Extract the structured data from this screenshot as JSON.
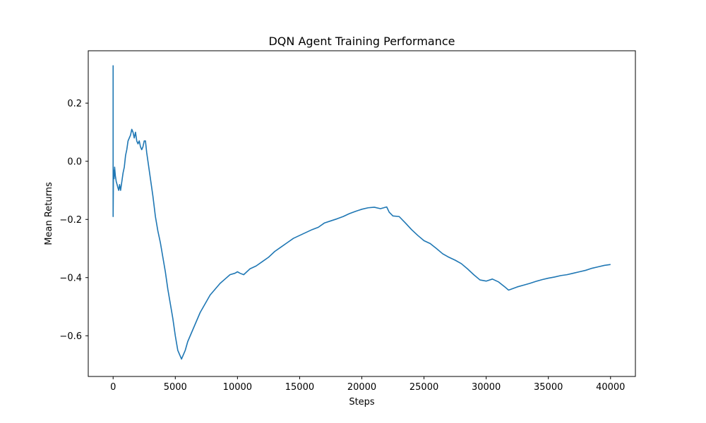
{
  "chart_data": {
    "type": "line",
    "title": "DQN Agent Training Performance",
    "xlabel": "Steps",
    "ylabel": "Mean Returns",
    "xlim": [
      -2000,
      42000
    ],
    "ylim": [
      -0.74,
      0.38
    ],
    "x_ticks": [
      0,
      5000,
      10000,
      15000,
      20000,
      25000,
      30000,
      35000,
      40000
    ],
    "x_tick_labels": [
      "0",
      "5000",
      "10000",
      "15000",
      "20000",
      "25000",
      "30000",
      "35000",
      "40000"
    ],
    "y_ticks": [
      -0.6,
      -0.4,
      -0.2,
      0.0,
      0.2
    ],
    "y_tick_labels": [
      "−0.6",
      "−0.4",
      "−0.2",
      "0.0",
      "0.2"
    ],
    "grid": false,
    "legend": false,
    "series": [
      {
        "color": "#1f77b4",
        "points": [
          [
            0,
            0.33
          ],
          [
            0,
            -0.19
          ],
          [
            30,
            -0.03
          ],
          [
            80,
            -0.06
          ],
          [
            120,
            -0.02
          ],
          [
            180,
            -0.05
          ],
          [
            250,
            -0.07
          ],
          [
            320,
            -0.08
          ],
          [
            380,
            -0.09
          ],
          [
            450,
            -0.1
          ],
          [
            520,
            -0.08
          ],
          [
            600,
            -0.1
          ],
          [
            700,
            -0.07
          ],
          [
            800,
            -0.04
          ],
          [
            900,
            -0.02
          ],
          [
            1000,
            0.02
          ],
          [
            1100,
            0.04
          ],
          [
            1200,
            0.07
          ],
          [
            1300,
            0.08
          ],
          [
            1400,
            0.09
          ],
          [
            1500,
            0.11
          ],
          [
            1600,
            0.1
          ],
          [
            1700,
            0.08
          ],
          [
            1800,
            0.1
          ],
          [
            1900,
            0.07
          ],
          [
            2000,
            0.06
          ],
          [
            2100,
            0.07
          ],
          [
            2200,
            0.05
          ],
          [
            2300,
            0.04
          ],
          [
            2400,
            0.05
          ],
          [
            2500,
            0.07
          ],
          [
            2600,
            0.07
          ],
          [
            2700,
            0.03
          ],
          [
            2800,
            0.0
          ],
          [
            2900,
            -0.03
          ],
          [
            3000,
            -0.06
          ],
          [
            3200,
            -0.12
          ],
          [
            3400,
            -0.19
          ],
          [
            3600,
            -0.24
          ],
          [
            3800,
            -0.28
          ],
          [
            4000,
            -0.33
          ],
          [
            4200,
            -0.38
          ],
          [
            4400,
            -0.44
          ],
          [
            4600,
            -0.49
          ],
          [
            4800,
            -0.54
          ],
          [
            5000,
            -0.6
          ],
          [
            5200,
            -0.65
          ],
          [
            5400,
            -0.67
          ],
          [
            5500,
            -0.68
          ],
          [
            5600,
            -0.67
          ],
          [
            5800,
            -0.65
          ],
          [
            6000,
            -0.62
          ],
          [
            6200,
            -0.6
          ],
          [
            6400,
            -0.58
          ],
          [
            6600,
            -0.56
          ],
          [
            6800,
            -0.54
          ],
          [
            7000,
            -0.52
          ],
          [
            7400,
            -0.49
          ],
          [
            7800,
            -0.46
          ],
          [
            8200,
            -0.44
          ],
          [
            8600,
            -0.42
          ],
          [
            9000,
            -0.405
          ],
          [
            9400,
            -0.39
          ],
          [
            9800,
            -0.385
          ],
          [
            10000,
            -0.38
          ],
          [
            10200,
            -0.385
          ],
          [
            10500,
            -0.39
          ],
          [
            11000,
            -0.37
          ],
          [
            11500,
            -0.36
          ],
          [
            12000,
            -0.345
          ],
          [
            12500,
            -0.33
          ],
          [
            13000,
            -0.31
          ],
          [
            13500,
            -0.295
          ],
          [
            14000,
            -0.28
          ],
          [
            14500,
            -0.265
          ],
          [
            15000,
            -0.255
          ],
          [
            15500,
            -0.245
          ],
          [
            16000,
            -0.235
          ],
          [
            16500,
            -0.227
          ],
          [
            17000,
            -0.212
          ],
          [
            17500,
            -0.205
          ],
          [
            18000,
            -0.198
          ],
          [
            18500,
            -0.19
          ],
          [
            19000,
            -0.18
          ],
          [
            19500,
            -0.172
          ],
          [
            20000,
            -0.165
          ],
          [
            20500,
            -0.16
          ],
          [
            21000,
            -0.158
          ],
          [
            21500,
            -0.163
          ],
          [
            22000,
            -0.157
          ],
          [
            22200,
            -0.175
          ],
          [
            22500,
            -0.188
          ],
          [
            23000,
            -0.19
          ],
          [
            23500,
            -0.212
          ],
          [
            24000,
            -0.235
          ],
          [
            24500,
            -0.255
          ],
          [
            25000,
            -0.273
          ],
          [
            25500,
            -0.283
          ],
          [
            26000,
            -0.3
          ],
          [
            26500,
            -0.318
          ],
          [
            27000,
            -0.33
          ],
          [
            27500,
            -0.34
          ],
          [
            28000,
            -0.352
          ],
          [
            28500,
            -0.37
          ],
          [
            29000,
            -0.39
          ],
          [
            29500,
            -0.408
          ],
          [
            30000,
            -0.412
          ],
          [
            30500,
            -0.405
          ],
          [
            31000,
            -0.415
          ],
          [
            31500,
            -0.432
          ],
          [
            31800,
            -0.443
          ],
          [
            32000,
            -0.44
          ],
          [
            32500,
            -0.432
          ],
          [
            33000,
            -0.426
          ],
          [
            33500,
            -0.42
          ],
          [
            34000,
            -0.413
          ],
          [
            34500,
            -0.407
          ],
          [
            35000,
            -0.402
          ],
          [
            35500,
            -0.398
          ],
          [
            36000,
            -0.393
          ],
          [
            36500,
            -0.39
          ],
          [
            37000,
            -0.385
          ],
          [
            37500,
            -0.38
          ],
          [
            38000,
            -0.375
          ],
          [
            38500,
            -0.368
          ],
          [
            39000,
            -0.363
          ],
          [
            39500,
            -0.358
          ],
          [
            40000,
            -0.355
          ]
        ]
      }
    ]
  }
}
